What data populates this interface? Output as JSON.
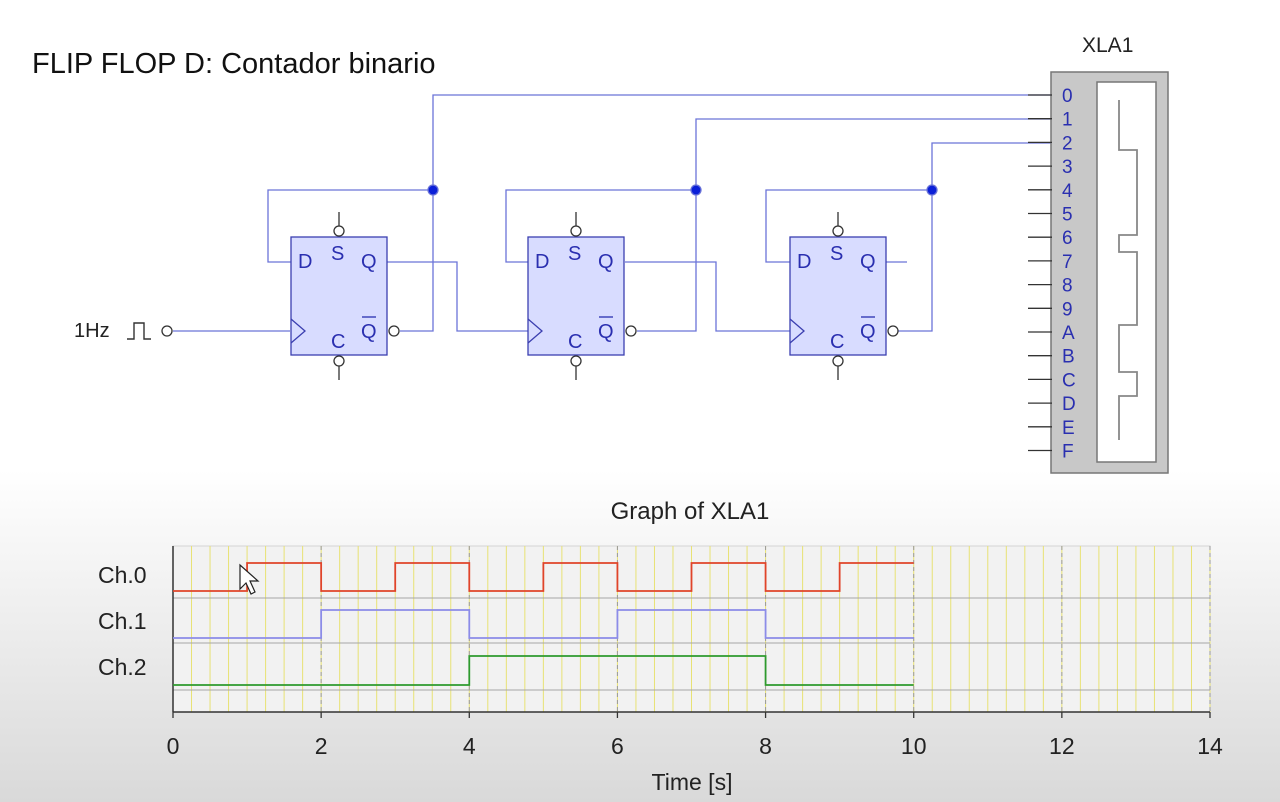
{
  "title": "FLIP FLOP D: Contador binario",
  "schematic": {
    "clock_label": "1Hz",
    "analyzer_name": "XLA1",
    "analyzer_pins": [
      "0",
      "1",
      "2",
      "3",
      "4",
      "5",
      "6",
      "7",
      "8",
      "9",
      "A",
      "B",
      "C",
      "D",
      "E",
      "F"
    ],
    "flip_flops": [
      {
        "d": "D",
        "s": "S",
        "q": "Q",
        "c": "C",
        "qn": "Q"
      },
      {
        "d": "D",
        "s": "S",
        "q": "Q",
        "c": "C",
        "qn": "Q"
      },
      {
        "d": "D",
        "s": "S",
        "q": "Q",
        "c": "C",
        "qn": "Q"
      }
    ],
    "colors": {
      "wire": "#6b74d8",
      "block_fill": "#d8dcff",
      "block_stroke": "#3b3fb0",
      "junction": "#0a1fd8",
      "pin_text": "#2a2fb0"
    }
  },
  "graph": {
    "title": "Graph of XLA1",
    "xlabel": "Time [s]",
    "x_ticks": [
      "0",
      "2",
      "4",
      "6",
      "8",
      "10",
      "12",
      "14"
    ],
    "channel_labels": [
      "Ch.0",
      "Ch.1",
      "Ch.2"
    ]
  },
  "chart_data": {
    "type": "line",
    "title": "Graph of XLA1",
    "xlabel": "Time [s]",
    "ylabel": "",
    "xlim": [
      0,
      14
    ],
    "grid": true,
    "series": [
      {
        "name": "Ch.0",
        "color": "#e0442a",
        "step_x": [
          0,
          1,
          2,
          3,
          4,
          5,
          6,
          7,
          8,
          9,
          10
        ],
        "values": [
          0,
          1,
          0,
          1,
          0,
          1,
          0,
          1,
          0,
          1,
          1
        ]
      },
      {
        "name": "Ch.1",
        "color": "#8c8ce8",
        "step_x": [
          0,
          2,
          4,
          6,
          8,
          10
        ],
        "values": [
          0,
          1,
          0,
          1,
          0,
          0
        ]
      },
      {
        "name": "Ch.2",
        "color": "#2e9a2e",
        "step_x": [
          0,
          4,
          8,
          10
        ],
        "values": [
          0,
          1,
          0,
          0
        ]
      }
    ]
  }
}
